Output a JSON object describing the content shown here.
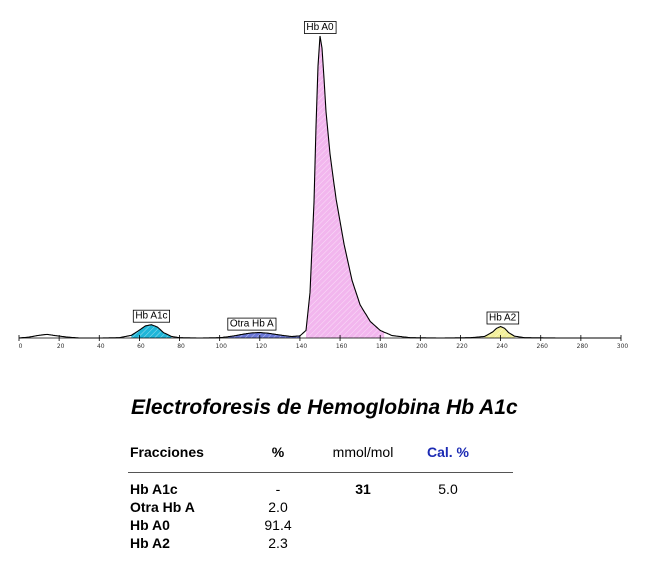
{
  "chart_data": {
    "type": "area",
    "title": "",
    "xlabel": "",
    "ylabel": "",
    "xlim": [
      0,
      300
    ],
    "x_ticks": [
      0,
      20,
      40,
      60,
      80,
      100,
      120,
      140,
      160,
      180,
      200,
      220,
      240,
      260,
      280,
      300
    ],
    "grid": false,
    "colors": {
      "hba1c": "#1fb6d8",
      "otra": "#6b78d8",
      "hba0": "#f2b6ee",
      "hba2": "#f3f09a",
      "line": "#000000"
    },
    "curve": {
      "x": [
        0,
        5,
        10,
        14,
        18,
        24,
        30,
        40,
        50,
        56,
        60,
        63,
        66,
        69,
        72,
        76,
        80,
        90,
        100,
        104,
        108,
        112,
        116,
        120,
        124,
        128,
        132,
        136,
        140,
        143,
        145,
        147,
        148,
        149,
        150,
        151,
        152,
        153,
        155,
        158,
        162,
        166,
        170,
        175,
        180,
        186,
        195,
        210,
        225,
        232,
        236,
        238,
        240,
        242,
        244,
        247,
        252,
        270,
        300
      ],
      "y": [
        0.0,
        0.3,
        0.9,
        1.2,
        0.8,
        0.3,
        0.0,
        0.0,
        0.1,
        0.9,
        2.6,
        4.0,
        4.4,
        3.6,
        1.8,
        0.5,
        0.1,
        0.0,
        0.1,
        0.4,
        0.8,
        1.3,
        1.7,
        1.8,
        1.6,
        1.2,
        0.8,
        0.5,
        0.7,
        2.5,
        15,
        45,
        70,
        90,
        100,
        96,
        86,
        75,
        61,
        46,
        31,
        19,
        11,
        5.5,
        2.5,
        0.8,
        0.1,
        0.0,
        0.1,
        0.5,
        2.0,
        3.2,
        3.8,
        3.2,
        1.8,
        0.6,
        0.1,
        0.0,
        0.0
      ]
    },
    "fractions": [
      {
        "label": "Hb A1c",
        "x_range": [
          56,
          76
        ],
        "label_x": 66,
        "label_y": 4.4,
        "color_key": "hba1c"
      },
      {
        "label": "Otra Hb A",
        "x_range": [
          104,
          140
        ],
        "label_x": 116,
        "label_y": 1.8,
        "color_key": "otra"
      },
      {
        "label": "Hb A0",
        "x_range": [
          143,
          182
        ],
        "label_x": 150,
        "label_y": 100,
        "color_key": "hba0"
      },
      {
        "label": "Hb A2",
        "x_range": [
          232,
          247
        ],
        "label_x": 241,
        "label_y": 3.8,
        "color_key": "hba2"
      }
    ]
  },
  "report": {
    "title": "Electroforesis de Hemoglobina Hb A1c",
    "headers": {
      "name": "Fracciones",
      "pct": "%",
      "mmol": "mmol/mol",
      "cal": "Cal. %"
    },
    "rows": [
      {
        "name": "Hb A1c",
        "pct": "-",
        "mmol": "31",
        "cal": "5.0"
      },
      {
        "name": "Otra Hb A",
        "pct": "2.0",
        "mmol": "",
        "cal": ""
      },
      {
        "name": "Hb A0",
        "pct": "91.4",
        "mmol": "",
        "cal": ""
      },
      {
        "name": "Hb A2",
        "pct": "2.3",
        "mmol": "",
        "cal": ""
      }
    ]
  }
}
